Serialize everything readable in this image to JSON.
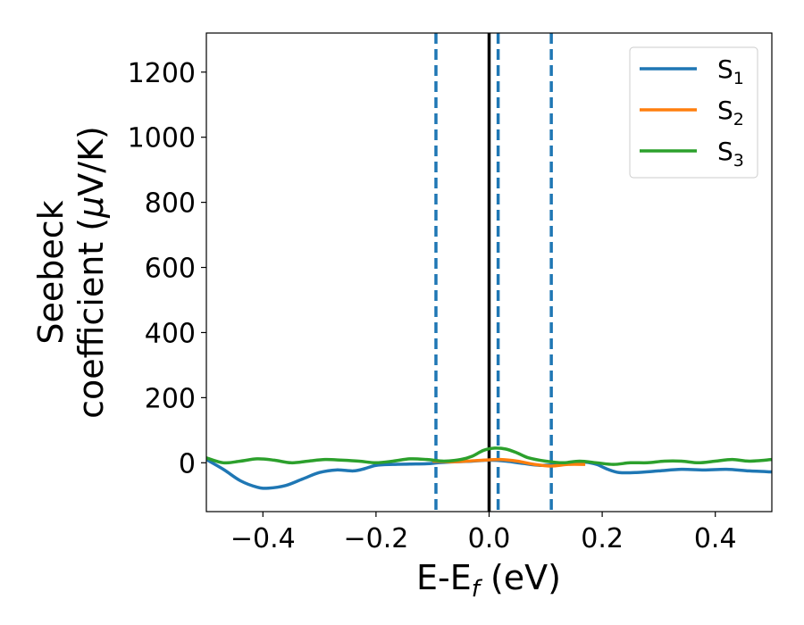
{
  "chart_data": {
    "type": "line",
    "xlabel": {
      "main": "E-E",
      "sub": "f",
      "unit": " (eV)"
    },
    "ylabel": {
      "line1": "Seebeck",
      "line2": "coefficient  (",
      "mu": "μ",
      "line2_end": "V/K)"
    },
    "xlim": [
      -0.5,
      0.5
    ],
    "ylim": [
      -150,
      1320
    ],
    "x_ticks": [
      -0.4,
      -0.2,
      0.0,
      0.2,
      0.4
    ],
    "x_tick_labels": [
      "−0.4",
      "−0.2",
      "0.0",
      "0.2",
      "0.4"
    ],
    "y_ticks": [
      0,
      200,
      400,
      600,
      800,
      1000,
      1200
    ],
    "y_tick_labels": [
      "0",
      "200",
      "400",
      "600",
      "800",
      "1000",
      "1200"
    ],
    "legend_position": "top-right",
    "colors": {
      "S1": "#1f77b4",
      "S2": "#ff7f0e",
      "S3": "#2ca02c",
      "fermi": "#000000"
    },
    "vertical_lines": {
      "solid": [
        0.0
      ],
      "dashed": [
        -0.094,
        0.016,
        0.11
      ]
    },
    "series": [
      {
        "name": "S",
        "sub": "1",
        "color": "#1f77b4",
        "x": [
          -0.5,
          -0.47,
          -0.44,
          -0.41,
          -0.39,
          -0.36,
          -0.33,
          -0.3,
          -0.27,
          -0.24,
          -0.22,
          -0.2,
          -0.17,
          -0.14,
          -0.11,
          -0.09,
          -0.06,
          -0.03,
          0.0,
          0.03,
          0.06,
          0.09,
          0.12,
          0.15,
          0.17,
          0.19,
          0.21,
          0.23,
          0.26,
          0.3,
          0.34,
          0.38,
          0.42,
          0.46,
          0.5
        ],
        "y": [
          10,
          -20,
          -55,
          -75,
          -78,
          -70,
          -50,
          -30,
          -22,
          -25,
          -18,
          -8,
          -5,
          -4,
          -3,
          0,
          3,
          5,
          8,
          5,
          -2,
          -8,
          -5,
          0,
          2,
          -5,
          -20,
          -30,
          -30,
          -25,
          -20,
          -22,
          -20,
          -25,
          -28
        ]
      },
      {
        "name": "S",
        "sub": "2",
        "color": "#ff7f0e",
        "x": [
          -0.1,
          -0.07,
          -0.04,
          -0.01,
          0.02,
          0.05,
          0.08,
          0.11,
          0.14,
          0.17
        ],
        "y": [
          5,
          3,
          5,
          8,
          10,
          5,
          -5,
          -10,
          -5,
          -5
        ]
      },
      {
        "name": "S",
        "sub": "3",
        "color": "#2ca02c",
        "x": [
          -0.5,
          -0.47,
          -0.44,
          -0.41,
          -0.38,
          -0.35,
          -0.32,
          -0.29,
          -0.26,
          -0.23,
          -0.2,
          -0.17,
          -0.14,
          -0.11,
          -0.08,
          -0.05,
          -0.03,
          -0.01,
          0.01,
          0.03,
          0.05,
          0.07,
          0.1,
          0.13,
          0.16,
          0.19,
          0.22,
          0.25,
          0.28,
          0.31,
          0.34,
          0.37,
          0.4,
          0.43,
          0.46,
          0.5
        ],
        "y": [
          15,
          0,
          5,
          12,
          8,
          0,
          5,
          10,
          8,
          5,
          0,
          5,
          12,
          10,
          5,
          10,
          20,
          38,
          45,
          42,
          30,
          15,
          5,
          0,
          5,
          0,
          -5,
          0,
          0,
          5,
          5,
          0,
          5,
          10,
          5,
          10
        ]
      }
    ]
  }
}
